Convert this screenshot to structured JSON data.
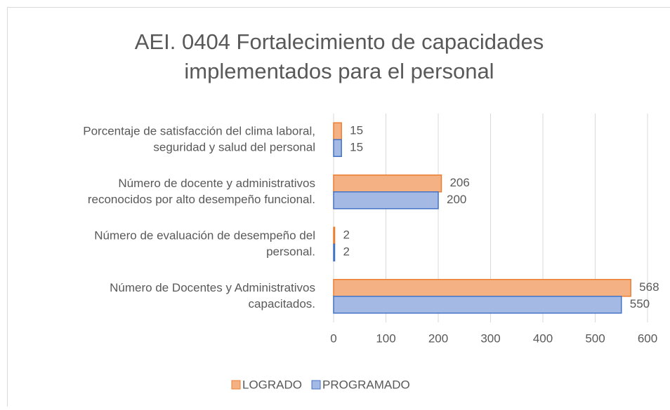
{
  "chart_data": {
    "type": "bar",
    "orientation": "horizontal",
    "title": [
      "AEI. 0404 Fortalecimiento de capacidades",
      "implementados para el personal"
    ],
    "categories": [
      [
        "Porcentaje de satisfacción del clima laboral,",
        "seguridad y salud del personal"
      ],
      [
        "Número de docente y administrativos",
        "reconocidos por alto desempeño funcional."
      ],
      [
        "Número de evaluación de desempeño del",
        "personal."
      ],
      [
        "Número de Docentes y Administrativos",
        "capacitados."
      ]
    ],
    "series": [
      {
        "name": "LOGRADO",
        "color": "#f4b183",
        "border": "#ed7d31",
        "values": [
          15,
          206,
          2,
          568
        ]
      },
      {
        "name": "PROGRAMADO",
        "color": "#a4b9e4",
        "border": "#4472c4",
        "values": [
          15,
          200,
          2,
          550
        ]
      }
    ],
    "xlim": [
      0,
      600
    ],
    "xticks": [
      0,
      100,
      200,
      300,
      400,
      500,
      600
    ],
    "grid": true,
    "legend": "bottom"
  }
}
